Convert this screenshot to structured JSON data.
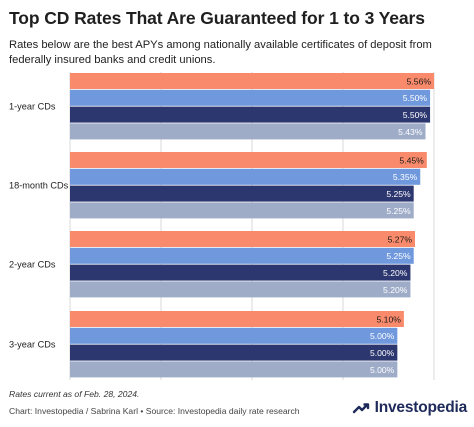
{
  "header": {
    "title": "Top CD Rates That Are Guaranteed for 1 to 3 Years",
    "subtitle": "Rates below are the best APYs among nationally available certificates of deposit from federally insured banks and credit unions."
  },
  "chart_data": {
    "type": "bar",
    "orientation": "horizontal",
    "categories": [
      "1-year CDs",
      "18-month CDs",
      "2-year CDs",
      "3-year CDs"
    ],
    "series": [
      {
        "values": [
          5.56,
          5.45,
          5.27,
          5.1
        ],
        "labels": [
          "5.56%",
          "5.45%",
          "5.27%",
          "5.10%"
        ],
        "color": "#f98a6b"
      },
      {
        "values": [
          5.5,
          5.35,
          5.25,
          5.0
        ],
        "labels": [
          "5.50%",
          "5.35%",
          "5.25%",
          "5.00%"
        ],
        "color": "#6f98dd"
      },
      {
        "values": [
          5.5,
          5.25,
          5.2,
          5.0
        ],
        "labels": [
          "5.50%",
          "5.25%",
          "5.20%",
          "5.00%"
        ],
        "color": "#2c3770"
      },
      {
        "values": [
          5.43,
          5.25,
          5.2,
          5.0
        ],
        "labels": [
          "5.43%",
          "5.25%",
          "5.20%",
          "5.00%"
        ],
        "color": "#9eacc8"
      }
    ],
    "xlim": [
      0,
      5.56
    ],
    "grid": true,
    "data_labels": "inside-end"
  },
  "footer": {
    "footnote": "Rates current as of Feb. 28, 2024.",
    "credit": "Chart: Investopedia / Sabrina Karl • Source: Investopedia daily rate research",
    "brand": "Investopedia"
  },
  "colors": {
    "grid": "#d9d9d9",
    "label_on_dark": "#ffffff",
    "label_on_light": "#1a1a1a",
    "brand": "#1e2a5a"
  }
}
